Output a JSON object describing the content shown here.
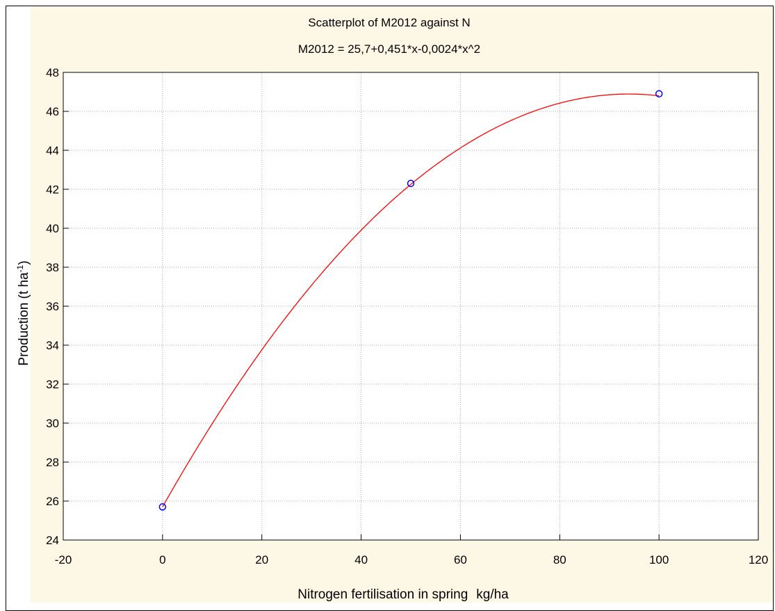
{
  "chart_data": {
    "type": "scatter",
    "title": "Scatterplot of M2012 against N",
    "subtitle": "M2012 = 25,7+0,451*x-0,0024*x^2",
    "xlabel": "Nitrogen fertilisation in spring",
    "xlabel_unit": "kg/ha",
    "ylabel_main": "Production (t ha",
    "ylabel_sup": "-1",
    "ylabel_close": ")",
    "xlim": [
      -20,
      120
    ],
    "ylim": [
      24,
      48
    ],
    "x_ticks": [
      -20,
      0,
      20,
      40,
      60,
      80,
      100,
      120
    ],
    "y_ticks": [
      24,
      26,
      28,
      30,
      32,
      34,
      36,
      38,
      40,
      42,
      44,
      46,
      48
    ],
    "grid": true,
    "points": [
      {
        "x": 0,
        "y": 25.7
      },
      {
        "x": 50,
        "y": 42.3
      },
      {
        "x": 100,
        "y": 46.9
      }
    ],
    "fit": {
      "type": "quadratic",
      "intercept": 25.7,
      "linear": 0.451,
      "quadratic": -0.0024,
      "x_range": [
        0,
        100
      ]
    }
  },
  "colors": {
    "background": "#fdf8e6",
    "plot_area": "#ffffff",
    "points": "#0000ff",
    "fit_line": "#ff0000",
    "grid": "#a8a8a8",
    "axis": "#000000"
  }
}
